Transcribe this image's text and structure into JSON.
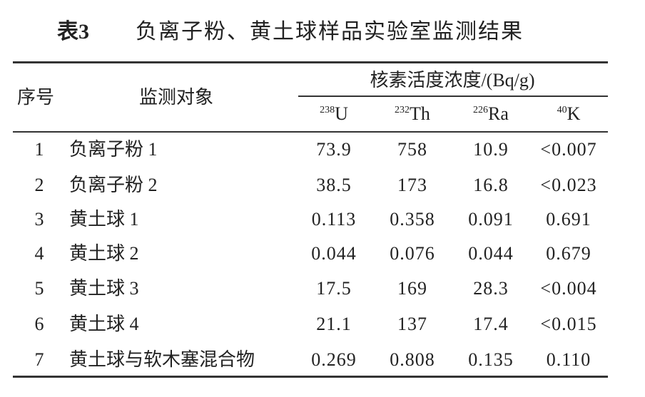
{
  "title": {
    "number": "表3",
    "text": "负离子粉、黄土球样品实验室监测结果"
  },
  "table": {
    "headers": {
      "no": "序号",
      "object": "监测对象",
      "group": "核素活度浓度/(Bq/g)",
      "nuclides": [
        {
          "mass": "238",
          "symbol": "U"
        },
        {
          "mass": "232",
          "symbol": "Th"
        },
        {
          "mass": "226",
          "symbol": "Ra"
        },
        {
          "mass": "40",
          "symbol": "K"
        }
      ]
    },
    "rows": [
      [
        "1",
        "负离子粉 1",
        "73.9",
        "758",
        "10.9",
        "<0.007"
      ],
      [
        "2",
        "负离子粉 2",
        "38.5",
        "173",
        "16.8",
        "<0.023"
      ],
      [
        "3",
        "黄土球 1",
        "0.113",
        "0.358",
        "0.091",
        "0.691"
      ],
      [
        "4",
        "黄土球 2",
        "0.044",
        "0.076",
        "0.044",
        "0.679"
      ],
      [
        "5",
        "黄土球 3",
        "17.5",
        "169",
        "28.3",
        "<0.004"
      ],
      [
        "6",
        "黄土球 4",
        "21.1",
        "137",
        "17.4",
        "<0.015"
      ],
      [
        "7",
        "黄土球与软木塞混合物",
        "0.269",
        "0.808",
        "0.135",
        "0.110"
      ]
    ]
  }
}
